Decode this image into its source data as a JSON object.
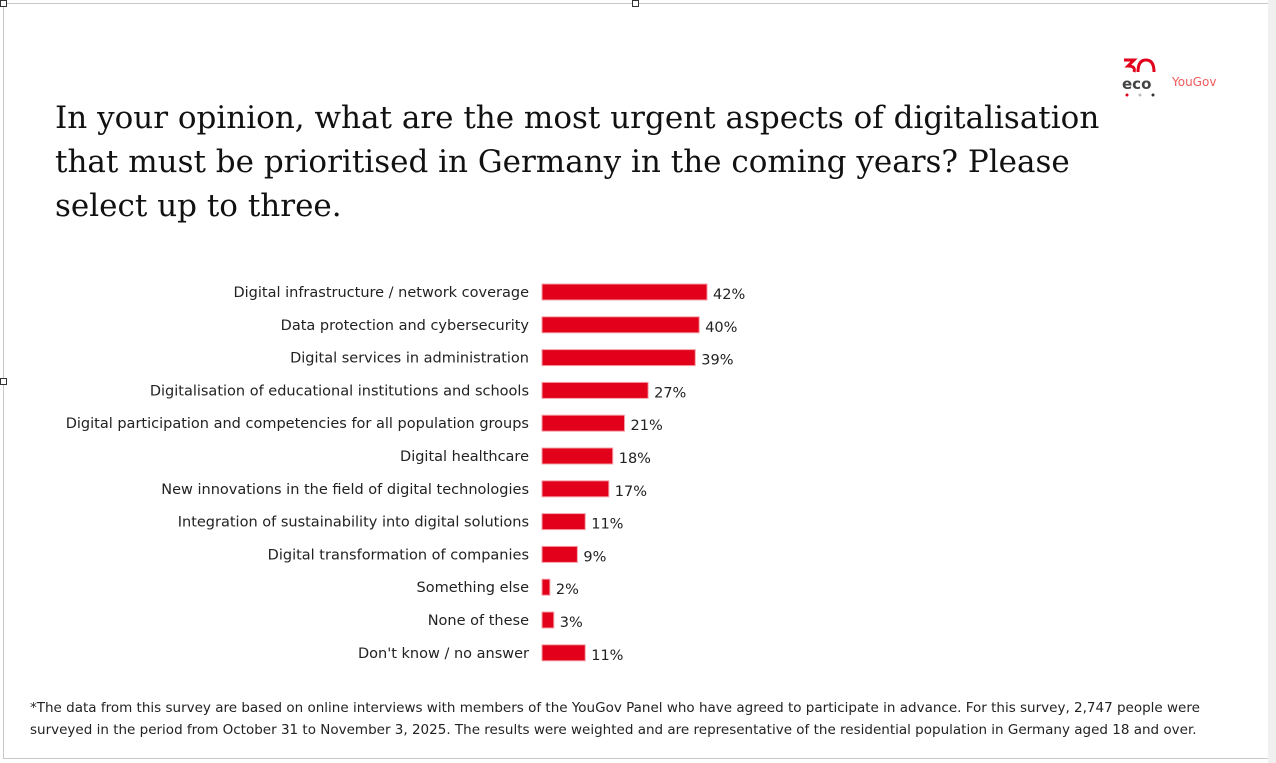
{
  "title": "In your opinion, what are the most urgent aspects of digitalisation that must be prioritised in Germany in the coming years? Please select up to three.",
  "logo": {
    "eco_text": "eco",
    "eco_number": "30",
    "brand": "YouGov"
  },
  "footnote": "*The data from this survey are based on online interviews with members of the YouGov Panel who have agreed to participate in advance. For this survey, 2,747 people were surveyed in the period from October 31 to November 3, 2025. The results were weighted and are representative of the residential population in Germany aged 18 and over.",
  "colors": {
    "bar": "#e2001a",
    "text": "#222222"
  },
  "chart_data": {
    "type": "bar",
    "orientation": "horizontal",
    "categories": [
      "Digital infrastructure / network coverage",
      "Data protection and cybersecurity",
      "Digital services in administration",
      "Digitalisation of educational institutions and schools",
      "Digital participation and competencies for all population groups",
      "Digital healthcare",
      "New innovations in the field of digital technologies",
      "Integration of sustainability into digital solutions",
      "Digital transformation of companies",
      "Something else",
      "None of these",
      "Don't know / no answer"
    ],
    "values": [
      42,
      40,
      39,
      27,
      21,
      18,
      17,
      11,
      9,
      2,
      3,
      11
    ],
    "data_labels": [
      "42%",
      "40%",
      "39%",
      "27%",
      "21%",
      "18%",
      "17%",
      "11%",
      "9%",
      "2%",
      "3%",
      "11%"
    ],
    "unit": "%",
    "grid": false,
    "legend": "none"
  }
}
